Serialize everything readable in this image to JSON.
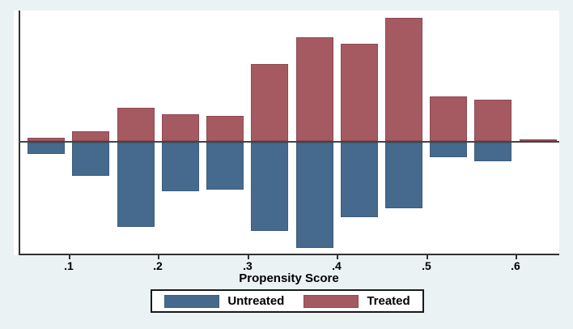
{
  "chart_data": {
    "type": "bar",
    "variant": "diverging-histogram (Stata psgraph overlap plot)",
    "title": "",
    "xlabel": "Propensity Score",
    "ylabel": "",
    "x_tick_labels": [
      ".1",
      ".2",
      ".3",
      ".4",
      ".5",
      ".6"
    ],
    "x_tick_values": [
      0.1,
      0.2,
      0.3,
      0.4,
      0.5,
      0.6
    ],
    "xlim": [
      0.044,
      0.65
    ],
    "bin_width": 0.05,
    "categories": [
      0.075,
      0.125,
      0.175,
      0.225,
      0.275,
      0.325,
      0.375,
      0.425,
      0.475,
      0.525,
      0.575,
      0.625
    ],
    "series": [
      {
        "name": "Treated",
        "direction": "up",
        "fill": "#A55A61",
        "border": "#8E4953",
        "values": [
          0.026,
          0.082,
          0.273,
          0.22,
          0.204,
          0.625,
          0.842,
          0.789,
          1.0,
          0.362,
          0.336,
          0.016
        ]
      },
      {
        "name": "Untreated",
        "direction": "down",
        "fill": "#466A8D",
        "border": "#3C5D7D",
        "values": [
          0.089,
          0.273,
          0.684,
          0.395,
          0.382,
          0.72,
          0.852,
          0.602,
          0.53,
          0.118,
          0.151,
          0.0
        ]
      }
    ],
    "y_units": "relative frequency; y-axis unlabeled, values normalized so tallest bar = 1.0",
    "grid": false,
    "legend_position": "bottom-center"
  },
  "legend": {
    "items": [
      {
        "label": "Untreated",
        "color": "#466A8D"
      },
      {
        "label": "Treated",
        "color": "#A55A61"
      }
    ]
  },
  "axis": {
    "x_title": "Propensity Score"
  },
  "colors": {
    "background": "#EAF2F3",
    "plot_background": "#FFFFFF",
    "axis_line": "#333333",
    "zero_line": "#444444",
    "text": "#000000",
    "legend_border": "#1A1A1A"
  }
}
